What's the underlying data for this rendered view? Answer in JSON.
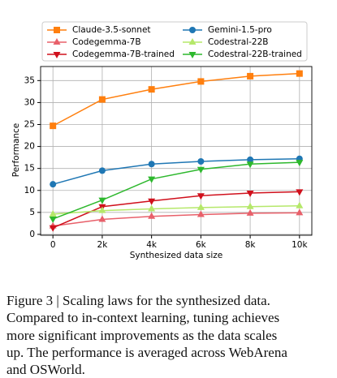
{
  "chart_data": {
    "type": "line",
    "x": [
      0,
      2000,
      4000,
      6000,
      8000,
      10000
    ],
    "xlabel": "Synthesized data size",
    "ylabel": "Performance",
    "xlim": [
      -500,
      10500
    ],
    "xticks": [
      0,
      {
        "value": 2000,
        "label": "2k"
      },
      {
        "value": 4000,
        "label": "4k"
      },
      {
        "value": 6000,
        "label": "6k"
      },
      {
        "value": 8000,
        "label": "8k"
      },
      {
        "value": 10000,
        "label": "10k"
      }
    ],
    "ylim": [
      -0.2,
      38.2
    ],
    "yticks": [
      0,
      5,
      10,
      15,
      20,
      25,
      30,
      35
    ],
    "grid": true,
    "legend": "top",
    "series": [
      {
        "name": "Claude-3.5-sonnet",
        "color": "#ff7f0e",
        "marker": "square",
        "values": [
          24.7,
          30.7,
          33.0,
          34.8,
          36.0,
          36.6
        ]
      },
      {
        "name": "Codegemma-7B",
        "color": "#e8606a",
        "marker": "triangle-up",
        "values": [
          1.9,
          3.4,
          4.1,
          4.5,
          4.8,
          4.9
        ]
      },
      {
        "name": "Codegemma-7B-trained",
        "color": "#d0101c",
        "marker": "triangle-down",
        "values": [
          1.5,
          6.3,
          7.6,
          8.8,
          9.4,
          9.7
        ]
      },
      {
        "name": "Gemini-1.5-pro",
        "color": "#1f77b4",
        "marker": "circle",
        "values": [
          11.4,
          14.5,
          16.0,
          16.6,
          17.0,
          17.2
        ]
      },
      {
        "name": "Codestral-22B",
        "color": "#b5e86a",
        "marker": "triangle-up",
        "values": [
          4.6,
          5.4,
          5.8,
          6.1,
          6.3,
          6.5
        ]
      },
      {
        "name": "Codestral-22B-trained",
        "color": "#2db82d",
        "marker": "triangle-down",
        "values": [
          3.5,
          7.8,
          12.6,
          14.8,
          16.0,
          16.4
        ]
      }
    ]
  },
  "caption_lines": [
    "Figure 3 | Scaling laws for the synthesized data.",
    "Compared to in-context learning, tuning achieves",
    "more significant improvements as the data scales",
    "up. The performance is averaged across WebArena",
    "and OSWorld."
  ]
}
